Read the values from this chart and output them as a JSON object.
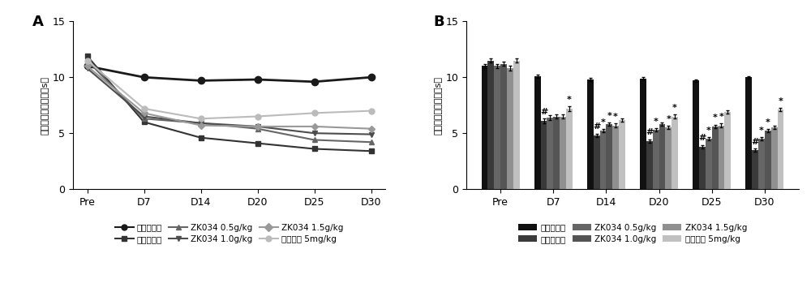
{
  "line_x_labels": [
    "Pre",
    "D7",
    "D14",
    "D20",
    "D25",
    "D30"
  ],
  "line_data_order": [
    "正常对照组",
    "模型对照组",
    "ZK034 0.5g/kg",
    "ZK034 1.0g/kg",
    "ZK034 1.5g/kg",
    "普瑞巴林 5mg/kg"
  ],
  "line_data": {
    "正常对照组": {
      "values": [
        11.0,
        10.0,
        9.7,
        9.8,
        9.6,
        10.0
      ],
      "color": "#1a1a1a",
      "marker": "o",
      "linewidth": 2.0,
      "markersize": 6
    },
    "模型对照组": {
      "values": [
        11.9,
        6.0,
        4.6,
        4.1,
        3.6,
        3.4
      ],
      "color": "#333333",
      "marker": "s",
      "linewidth": 1.5,
      "markersize": 5
    },
    "ZK034 0.5g/kg": {
      "values": [
        11.5,
        6.3,
        5.9,
        5.4,
        4.4,
        4.2
      ],
      "color": "#666666",
      "marker": "^",
      "linewidth": 1.5,
      "markersize": 5
    },
    "ZK034 1.0g/kg": {
      "values": [
        10.8,
        6.5,
        5.9,
        5.6,
        5.0,
        4.9
      ],
      "color": "#4d4d4d",
      "marker": "v",
      "linewidth": 1.5,
      "markersize": 5
    },
    "ZK034 1.5g/kg": {
      "values": [
        11.0,
        6.8,
        5.7,
        5.6,
        5.6,
        5.4
      ],
      "color": "#999999",
      "marker": "D",
      "linewidth": 1.5,
      "markersize": 4
    },
    "普瑞巴林 5mg/kg": {
      "values": [
        11.5,
        7.2,
        6.3,
        6.5,
        6.8,
        7.0
      ],
      "color": "#bbbbbb",
      "marker": "o",
      "linewidth": 1.5,
      "markersize": 5
    }
  },
  "bar_x_labels": [
    "Pre",
    "D7",
    "D14",
    "D20",
    "D25",
    "D30"
  ],
  "bar_data_order": [
    "正常对照组",
    "模型对照组",
    "ZK034 0.5g/kg",
    "ZK034 1.0g/kg",
    "ZK034 1.5g/kg",
    "普瑞巴林 5mg/kg"
  ],
  "bar_data": {
    "正常对照组": {
      "values": [
        11.0,
        10.1,
        9.8,
        9.9,
        9.7,
        10.0
      ],
      "errors": [
        0.2,
        0.15,
        0.12,
        0.12,
        0.12,
        0.12
      ],
      "color": "#111111"
    },
    "模型对照组": {
      "values": [
        11.5,
        6.1,
        4.8,
        4.3,
        3.8,
        3.5
      ],
      "errors": [
        0.2,
        0.2,
        0.15,
        0.15,
        0.15,
        0.12
      ],
      "color": "#3a3a3a"
    },
    "ZK034 0.5g/kg": {
      "values": [
        11.0,
        6.4,
        5.2,
        5.3,
        4.5,
        4.5
      ],
      "errors": [
        0.2,
        0.2,
        0.15,
        0.15,
        0.15,
        0.15
      ],
      "color": "#666666"
    },
    "ZK034 1.0g/kg": {
      "values": [
        11.2,
        6.5,
        5.8,
        5.8,
        5.6,
        5.2
      ],
      "errors": [
        0.2,
        0.2,
        0.15,
        0.15,
        0.15,
        0.15
      ],
      "color": "#555555"
    },
    "ZK034 1.5g/kg": {
      "values": [
        10.8,
        6.5,
        5.7,
        5.5,
        5.7,
        5.5
      ],
      "errors": [
        0.2,
        0.2,
        0.15,
        0.15,
        0.15,
        0.15
      ],
      "color": "#909090"
    },
    "普瑞巴林 5mg/kg": {
      "values": [
        11.5,
        7.2,
        6.2,
        6.5,
        6.9,
        7.1
      ],
      "errors": [
        0.2,
        0.2,
        0.15,
        0.15,
        0.15,
        0.15
      ],
      "color": "#c0c0c0"
    }
  },
  "bar_annotations": {
    "D7": [
      null,
      "#",
      null,
      null,
      null,
      "*"
    ],
    "D14": [
      null,
      "#",
      "*",
      "*",
      "*",
      null
    ],
    "D20": [
      null,
      "#",
      "*",
      null,
      "*",
      "*"
    ],
    "D25": [
      null,
      "#",
      "*",
      "*",
      "*",
      null
    ],
    "D30": [
      null,
      "#",
      "*",
      "*",
      null,
      "*"
    ]
  },
  "ylabel": "光热痛缩足潜伏期（s）",
  "ylim": [
    0,
    15
  ],
  "yticks": [
    0,
    5,
    10,
    15
  ],
  "panel_A_label": "A",
  "panel_B_label": "B",
  "background_color": "#ffffff"
}
